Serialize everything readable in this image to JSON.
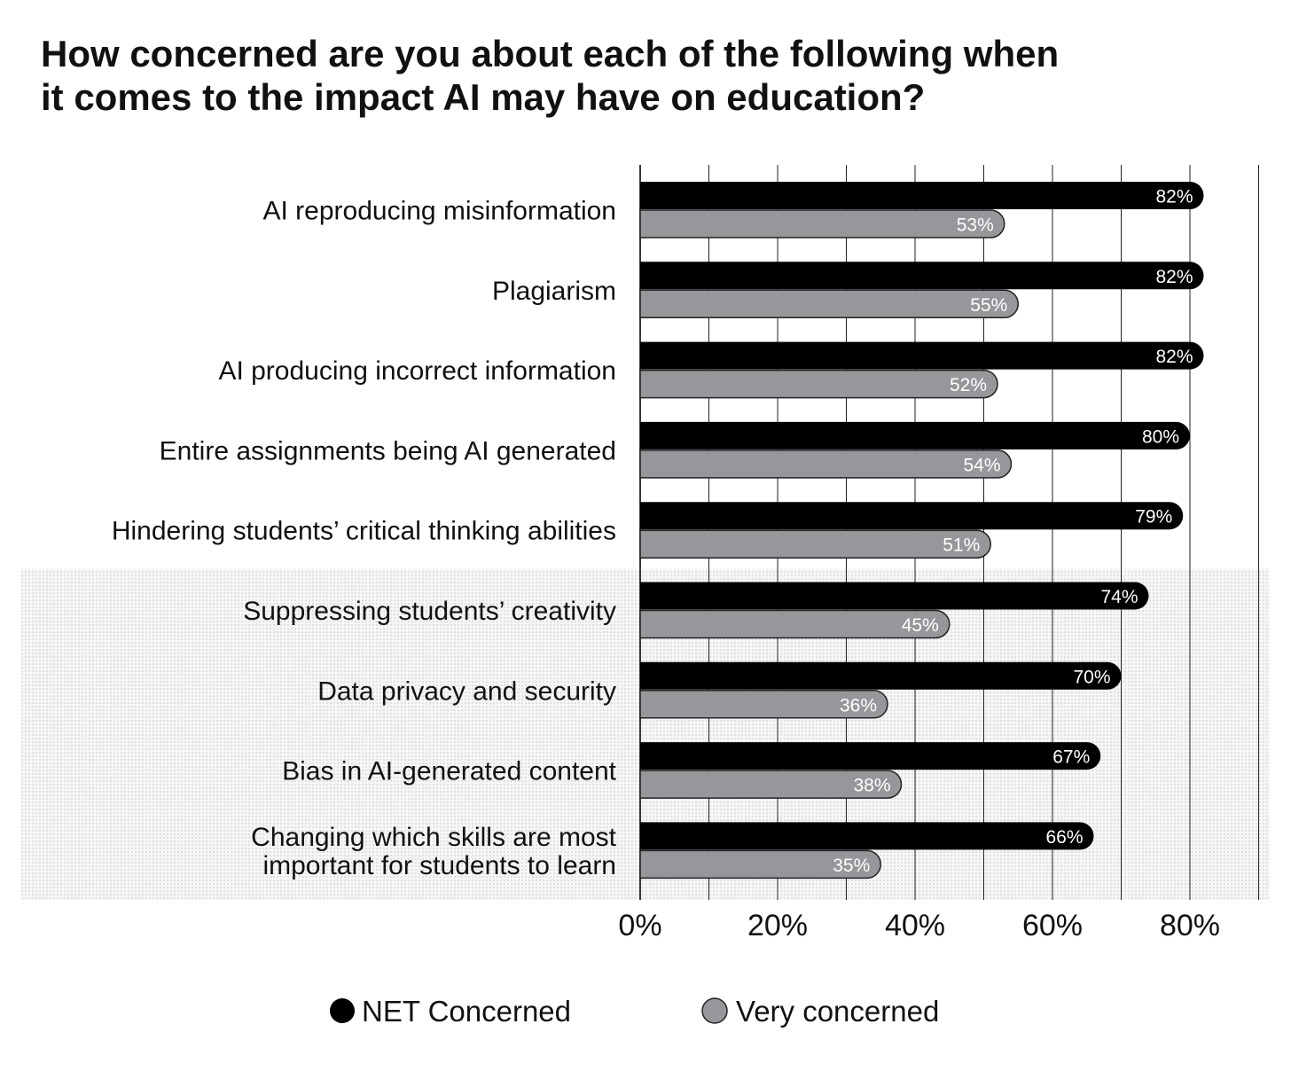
{
  "chart_data": {
    "type": "bar",
    "orientation": "horizontal",
    "title": "How concerned are you about each of the following when it comes to the impact AI may have on education?",
    "title_lines": [
      "How concerned are you about each of the following when",
      "it comes to the impact AI may have on education?"
    ],
    "categories": [
      [
        "AI reproducing misinformation"
      ],
      [
        "Plagiarism"
      ],
      [
        "AI producing incorrect information"
      ],
      [
        "Entire assignments being AI generated"
      ],
      [
        "Hindering students’ critical thinking abilities"
      ],
      [
        "Suppressing students’ creativity"
      ],
      [
        "Data privacy and security"
      ],
      [
        "Bias in AI-generated content"
      ],
      [
        "Changing which skills are most",
        "important for students to learn"
      ]
    ],
    "series": [
      {
        "name": "NET Concerned",
        "color": "#000000",
        "values": [
          82,
          82,
          82,
          80,
          79,
          74,
          70,
          67,
          66
        ]
      },
      {
        "name": "Very concerned",
        "color": "#97979b",
        "values": [
          53,
          55,
          52,
          54,
          51,
          45,
          36,
          38,
          35
        ]
      }
    ],
    "value_suffix": "%",
    "xlim": [
      0,
      90
    ],
    "xticks": [
      0,
      20,
      40,
      60,
      80
    ],
    "xtick_labels": [
      "0%",
      "20%",
      "40%",
      "60%",
      "80%"
    ],
    "grid_step": 10,
    "grid": true,
    "shaded_from_category_index": 5,
    "legend_position": "bottom-center"
  }
}
